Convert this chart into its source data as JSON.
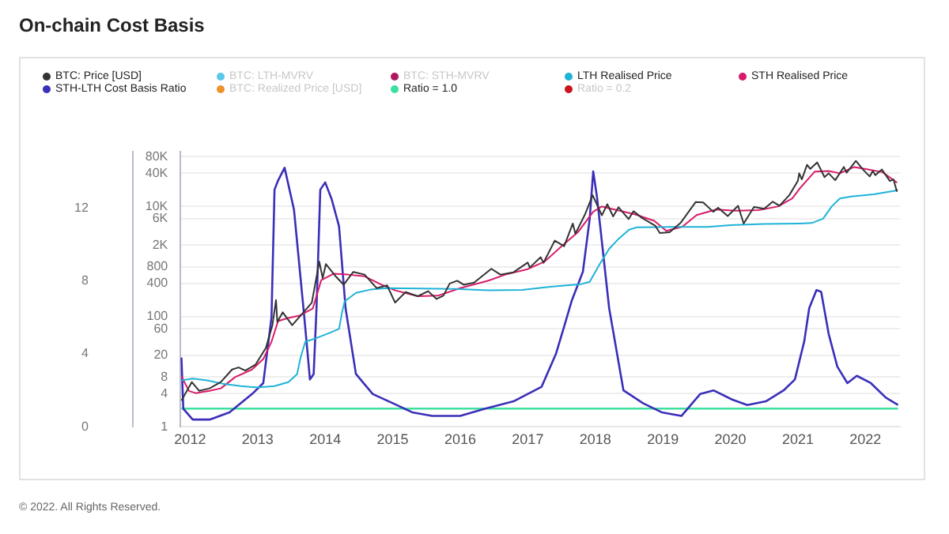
{
  "chart_data": {
    "type": "line",
    "title": "On-chain Cost Basis",
    "legend": "top",
    "log": true,
    "grid": "y",
    "marker": "none",
    "line_style": "solid",
    "xlim": [
      "2011-11-10",
      "2022-07-05"
    ],
    "xticks": [
      "2012",
      "2013",
      "2014",
      "2015",
      "2016",
      "2017",
      "2018",
      "2019",
      "2020",
      "2021",
      "2022"
    ],
    "ylim": [
      1,
      100000
    ],
    "yticks": [
      1,
      4,
      8,
      20,
      60,
      100,
      400,
      800,
      {
        "value": 2000,
        "label": "2K"
      },
      {
        "value": 6000,
        "label": "6K"
      },
      {
        "value": 10000,
        "label": "10K"
      },
      {
        "value": 40000,
        "label": "40K"
      },
      {
        "value": 80000,
        "label": "80K"
      }
    ],
    "y2lim": [
      0,
      15.1
    ],
    "y2ticks": [
      0,
      4,
      8,
      12
    ],
    "annotations": [
      "© 2022. All Rights Reserved."
    ],
    "series": [
      {
        "name": "BTC: Price [USD]",
        "color": "#333333",
        "axis": "y",
        "x": [
          "2011-11-15",
          "2012-01-10",
          "2012-02-20",
          "2012-04-15",
          "2012-06-15",
          "2012-08-15",
          "2012-09-20",
          "2012-10-25",
          "2012-12-20",
          "2013-02-15",
          "2013-03-20",
          "2013-04-09",
          "2013-04-16",
          "2013-05-15",
          "2013-07-05",
          "2013-09-15",
          "2013-10-20",
          "2013-11-30",
          "2013-12-18",
          "2014-01-05",
          "2014-02-25",
          "2014-04-10",
          "2014-06-01",
          "2014-08-01",
          "2014-10-05",
          "2014-12-01",
          "2015-01-14",
          "2015-03-10",
          "2015-05-15",
          "2015-07-10",
          "2015-08-25",
          "2015-10-01",
          "2015-11-05",
          "2015-12-15",
          "2016-01-20",
          "2016-03-15",
          "2016-06-17",
          "2016-08-05",
          "2016-10-15",
          "2016-12-31",
          "2017-01-12",
          "2017-03-10",
          "2017-03-25",
          "2017-05-25",
          "2017-07-15",
          "2017-09-01",
          "2017-09-15",
          "2017-11-08",
          "2017-12-17",
          "2018-02-06",
          "2018-03-05",
          "2018-04-06",
          "2018-05-05",
          "2018-06-29",
          "2018-07-25",
          "2018-09-10",
          "2018-11-20",
          "2018-12-15",
          "2019-02-07",
          "2019-04-05",
          "2019-06-26",
          "2019-08-06",
          "2019-09-30",
          "2019-10-26",
          "2019-12-17",
          "2020-02-12",
          "2020-03-12",
          "2020-05-07",
          "2020-07-01",
          "2020-08-17",
          "2020-09-23",
          "2020-11-15",
          "2020-12-31",
          "2021-01-08",
          "2021-01-22",
          "2021-02-20",
          "2021-03-07",
          "2021-04-14",
          "2021-05-23",
          "2021-06-15",
          "2021-07-20",
          "2021-09-06",
          "2021-09-21",
          "2021-11-10",
          "2021-12-20",
          "2022-01-24",
          "2022-02-10",
          "2022-02-24",
          "2022-03-29",
          "2022-05-11",
          "2022-05-31",
          "2022-06-18",
          "2022-06-20"
        ],
        "values": [
          3,
          6.5,
          4.5,
          5,
          6.5,
          11,
          12,
          10.5,
          13.5,
          27,
          70,
          200,
          80,
          120,
          70,
          130,
          180,
          1000,
          500,
          900,
          550,
          380,
          650,
          580,
          330,
          370,
          180,
          280,
          235,
          290,
          210,
          240,
          400,
          450,
          380,
          415,
          740,
          580,
          640,
          960,
          780,
          1200,
          950,
          2400,
          1900,
          4900,
          3200,
          7400,
          16000,
          6900,
          11000,
          6600,
          9700,
          5900,
          8200,
          6200,
          4500,
          3300,
          3400,
          5000,
          12000,
          11800,
          8000,
          9500,
          6700,
          10300,
          4900,
          9800,
          9100,
          12200,
          10300,
          16000,
          29000,
          40000,
          31000,
          57000,
          48000,
          63000,
          34000,
          40000,
          30000,
          52000,
          41000,
          67000,
          46000,
          35000,
          44000,
          37000,
          47000,
          29000,
          31000,
          19000,
          20500
        ]
      },
      {
        "name": "BTC: LTH-MVRV",
        "color": "#5bc8e8"
      },
      {
        "name": "BTC: STH-MVRV",
        "color": "#b0185e"
      },
      {
        "name": "LTH Realised Price",
        "color": "#1fb3d8",
        "axis": "y",
        "x": [
          "2011-11-15",
          "2012-01-15",
          "2012-04-01",
          "2012-07-01",
          "2012-10-01",
          "2013-01-01",
          "2013-04-01",
          "2013-06-15",
          "2013-08-01",
          "2013-08-20",
          "2013-09-15",
          "2013-11-15",
          "2014-01-20",
          "2014-03-15",
          "2014-04-01",
          "2014-04-15",
          "2014-06-15",
          "2014-09-01",
          "2014-12-01",
          "2015-06-01",
          "2015-12-01",
          "2016-06-01",
          "2016-12-01",
          "2017-05-01",
          "2017-10-15",
          "2017-12-01",
          "2018-01-25",
          "2018-03-15",
          "2018-05-01",
          "2018-07-01",
          "2018-08-15",
          "2019-03-01",
          "2019-09-01",
          "2020-01-01",
          "2020-07-01",
          "2021-01-01",
          "2021-03-15",
          "2021-05-15",
          "2021-07-01",
          "2021-08-15",
          "2021-10-15",
          "2022-02-15",
          "2022-06-20"
        ],
        "values": [
          7,
          7.5,
          7,
          6,
          5.5,
          5.2,
          5.5,
          6.5,
          9,
          18,
          35,
          41,
          50,
          60,
          120,
          190,
          270,
          310,
          330,
          325,
          320,
          300,
          305,
          350,
          390,
          430,
          900,
          1700,
          2500,
          3800,
          4200,
          4250,
          4250,
          4600,
          4800,
          4900,
          5000,
          6000,
          10000,
          14000,
          15200,
          16600,
          19600
        ]
      },
      {
        "name": "STH Realised Price",
        "color": "#d81b6a",
        "axis": "y",
        "x": [
          "2011-11-15",
          "2011-12-25",
          "2012-02-01",
          "2012-04-15",
          "2012-06-15",
          "2012-09-01",
          "2012-12-01",
          "2013-02-01",
          "2013-03-15",
          "2013-04-20",
          "2013-06-15",
          "2013-08-15",
          "2013-10-25",
          "2013-12-10",
          "2014-02-15",
          "2014-05-01",
          "2014-08-01",
          "2014-11-01",
          "2015-01-15",
          "2015-05-15",
          "2015-09-01",
          "2016-01-01",
          "2016-06-01",
          "2016-09-01",
          "2017-01-01",
          "2017-04-01",
          "2017-07-01",
          "2017-10-01",
          "2017-12-20",
          "2018-02-05",
          "2018-05-01",
          "2018-08-01",
          "2018-11-15",
          "2019-01-20",
          "2019-04-15",
          "2019-07-01",
          "2019-10-15",
          "2020-02-01",
          "2020-06-01",
          "2020-09-15",
          "2020-12-01",
          "2021-01-15",
          "2021-04-01",
          "2021-06-15",
          "2021-08-15",
          "2021-11-01",
          "2022-01-15",
          "2022-04-01",
          "2022-06-20"
        ],
        "values": [
          8.3,
          4.5,
          4.1,
          4.5,
          5,
          8,
          11,
          17,
          35,
          83,
          95,
          105,
          140,
          460,
          600,
          580,
          540,
          380,
          300,
          235,
          240,
          330,
          450,
          580,
          730,
          1000,
          1900,
          3500,
          8000,
          10000,
          8500,
          7200,
          5500,
          3600,
          4300,
          7000,
          8800,
          8400,
          8600,
          10000,
          14000,
          22000,
          43000,
          44000,
          40000,
          52000,
          47000,
          42000,
          27000
        ]
      },
      {
        "name": "STH-LTH Cost Basis Ratio",
        "color": "#3a2fb8",
        "axis": "y2",
        "x": [
          "2011-11-15",
          "2011-11-25",
          "2012-01-15",
          "2012-04-15",
          "2012-08-01",
          "2012-12-01",
          "2013-02-01",
          "2013-03-15",
          "2013-04-01",
          "2013-04-20",
          "2013-05-25",
          "2013-07-15",
          "2013-09-10",
          "2013-10-10",
          "2013-10-30",
          "2013-11-15",
          "2013-12-05",
          "2014-01-01",
          "2014-02-05",
          "2014-03-15",
          "2014-04-20",
          "2014-06-15",
          "2014-09-15",
          "2015-01-01",
          "2015-04-15",
          "2015-08-01",
          "2016-01-01",
          "2016-05-15",
          "2016-10-15",
          "2017-03-15",
          "2017-06-01",
          "2017-07-15",
          "2017-08-25",
          "2017-10-25",
          "2017-12-01",
          "2017-12-20",
          "2018-01-10",
          "2018-03-15",
          "2018-06-01",
          "2018-09-15",
          "2018-12-25",
          "2019-04-10",
          "2019-07-20",
          "2019-10-01",
          "2020-01-10",
          "2020-04-01",
          "2020-07-10",
          "2020-10-15",
          "2020-12-15",
          "2021-02-05",
          "2021-03-01",
          "2021-04-10",
          "2021-05-05",
          "2021-06-15",
          "2021-08-01",
          "2021-09-25",
          "2021-11-15",
          "2022-01-30",
          "2022-04-20",
          "2022-06-25"
        ],
        "values": [
          3.8,
          1.0,
          0.4,
          0.4,
          0.8,
          1.8,
          2.4,
          6,
          13,
          13.5,
          14.2,
          11.9,
          6,
          2.6,
          2.9,
          6.5,
          13,
          13.4,
          12.5,
          11,
          6.5,
          2.9,
          1.8,
          1.3,
          0.8,
          0.6,
          0.6,
          1.0,
          1.4,
          2.2,
          4.0,
          5.5,
          6.9,
          8.5,
          11.4,
          14.0,
          12.6,
          6.5,
          2.0,
          1.3,
          0.8,
          0.6,
          1.8,
          2.0,
          1.5,
          1.2,
          1.4,
          2.0,
          2.6,
          4.7,
          6.5,
          7.5,
          7.4,
          5.1,
          3.3,
          2.4,
          2.8,
          2.4,
          1.6,
          1.2
        ]
      },
      {
        "name": "BTC: Realized Price [USD]",
        "color": "#f0922c"
      },
      {
        "name": "Ratio = 1.0",
        "color": "#3ee0a0",
        "axis": "y2",
        "x": [
          "2011-11-15",
          "2022-06-25"
        ],
        "values": [
          1,
          1
        ]
      },
      {
        "name": "Ratio = 0.2",
        "color": "#c8161c"
      }
    ]
  }
}
